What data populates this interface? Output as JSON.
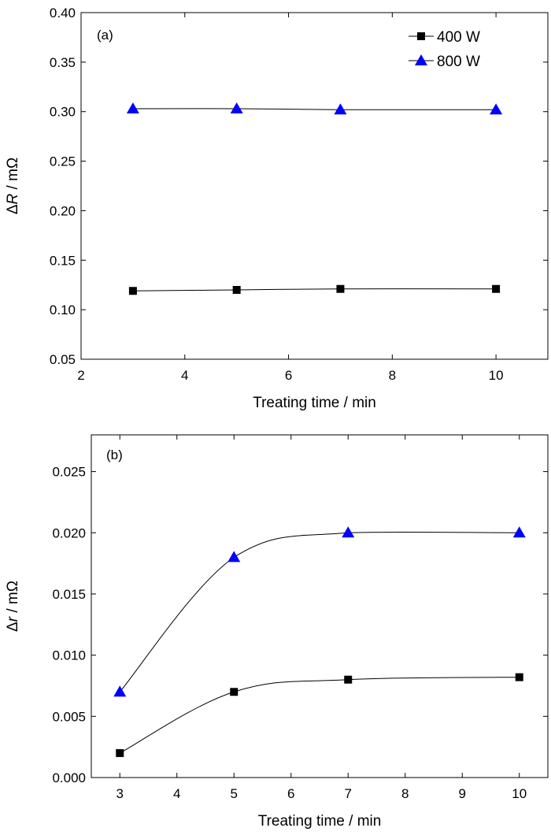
{
  "chart_data": [
    {
      "type": "line",
      "panel_label": "(a)",
      "xlabel": "Treating time / min",
      "ylabel_symbol": "R",
      "ylabel_prefix": "Δ",
      "ylabel_suffix": " / mΩ",
      "xlim": [
        2,
        11
      ],
      "ylim": [
        0.05,
        0.4
      ],
      "x_ticks": [
        2,
        4,
        6,
        8,
        10
      ],
      "x_tick_labels": [
        "2",
        "4",
        "6",
        "8",
        "10"
      ],
      "y_ticks": [
        0.05,
        0.1,
        0.15,
        0.2,
        0.25,
        0.3,
        0.35,
        0.4
      ],
      "y_tick_labels": [
        "0.05",
        "0.10",
        "0.15",
        "0.20",
        "0.25",
        "0.30",
        "0.35",
        "0.40"
      ],
      "legend_position": "top-right",
      "grid": false,
      "series": [
        {
          "name": "400 W",
          "marker": "square",
          "color": "#000000",
          "x": [
            3,
            5,
            7,
            10
          ],
          "y": [
            0.119,
            0.12,
            0.121,
            0.121
          ]
        },
        {
          "name": "800 W",
          "marker": "triangle",
          "color": "#0000ff",
          "x": [
            3,
            5,
            7,
            10
          ],
          "y": [
            0.303,
            0.303,
            0.302,
            0.302
          ]
        }
      ]
    },
    {
      "type": "line",
      "panel_label": "(b)",
      "xlabel": "Treating time / min",
      "ylabel_symbol": "r",
      "ylabel_prefix": "Δ",
      "ylabel_suffix": " / mΩ",
      "xlim": [
        2.5,
        10.5
      ],
      "ylim": [
        0.0,
        0.028
      ],
      "x_ticks": [
        3,
        4,
        5,
        6,
        7,
        8,
        9,
        10
      ],
      "x_tick_labels": [
        "3",
        "4",
        "5",
        "6",
        "7",
        "8",
        "9",
        "10"
      ],
      "y_ticks": [
        0.0,
        0.005,
        0.01,
        0.015,
        0.02,
        0.025
      ],
      "y_tick_labels": [
        "0.000",
        "0.005",
        "0.010",
        "0.015",
        "0.020",
        "0.025"
      ],
      "grid": false,
      "series": [
        {
          "name": "400 W",
          "marker": "square",
          "color": "#000000",
          "x": [
            3,
            5,
            7,
            10
          ],
          "y": [
            0.002,
            0.007,
            0.008,
            0.0082
          ]
        },
        {
          "name": "800 W",
          "marker": "triangle",
          "color": "#0000ff",
          "x": [
            3,
            5,
            7,
            10
          ],
          "y": [
            0.007,
            0.018,
            0.02,
            0.02
          ]
        }
      ]
    }
  ]
}
